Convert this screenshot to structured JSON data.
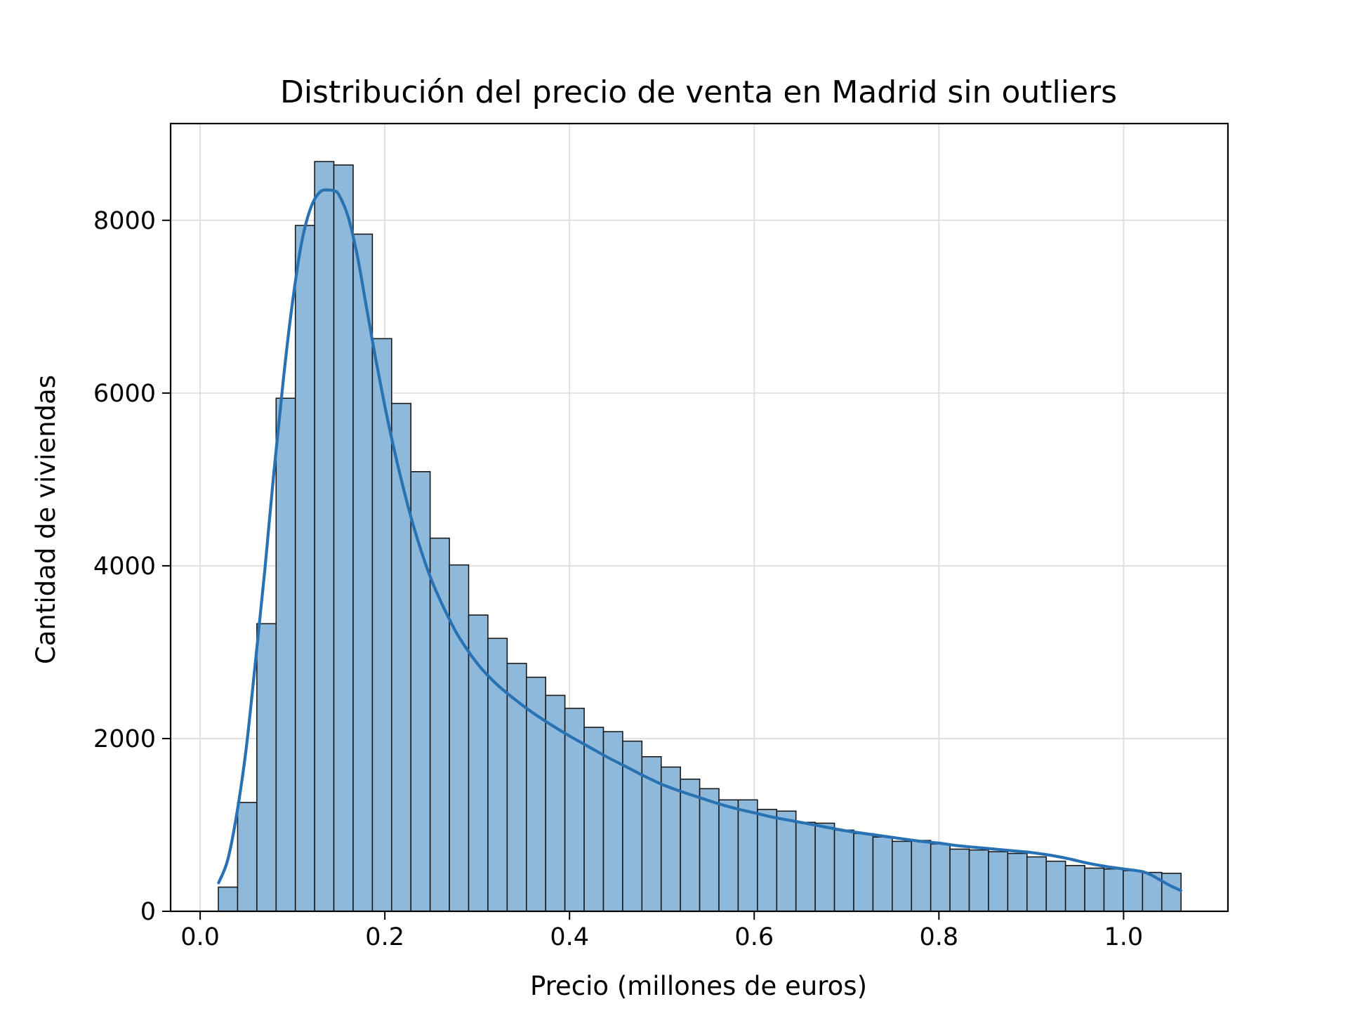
{
  "chart_data": {
    "type": "bar",
    "title": "Distribución del precio de venta en Madrid sin outliers",
    "xlabel": "Precio (millones de euros)",
    "ylabel": "Cantidad de viviendas",
    "xlim": [
      -0.032,
      1.113
    ],
    "ylim": [
      0,
      9120
    ],
    "xticks": [
      0.0,
      0.2,
      0.4,
      0.6,
      0.8,
      1.0
    ],
    "xtick_labels": [
      "0.0",
      "0.2",
      "0.4",
      "0.6",
      "0.8",
      "1.0"
    ],
    "yticks": [
      0,
      2000,
      4000,
      6000,
      8000
    ],
    "ytick_labels": [
      "0",
      "2000",
      "4000",
      "6000",
      "8000"
    ],
    "grid": true,
    "bins": {
      "start": 0.0197,
      "width": 0.02085,
      "counts": [
        280,
        1260,
        3330,
        5940,
        7940,
        8680,
        8640,
        7840,
        6630,
        5880,
        5090,
        4320,
        4010,
        3430,
        3160,
        2870,
        2710,
        2500,
        2350,
        2130,
        2080,
        1970,
        1790,
        1670,
        1530,
        1420,
        1290,
        1290,
        1180,
        1160,
        1030,
        1020,
        940,
        900,
        860,
        810,
        820,
        780,
        720,
        710,
        690,
        670,
        630,
        580,
        530,
        500,
        490,
        470,
        450,
        440
      ]
    },
    "kde": {
      "x": [
        0.02,
        0.03,
        0.04,
        0.05,
        0.06,
        0.07,
        0.08,
        0.09,
        0.1,
        0.11,
        0.12,
        0.13,
        0.14,
        0.145,
        0.15,
        0.16,
        0.17,
        0.18,
        0.19,
        0.2,
        0.21,
        0.22,
        0.23,
        0.24,
        0.25,
        0.26,
        0.27,
        0.28,
        0.3,
        0.32,
        0.34,
        0.36,
        0.38,
        0.4,
        0.42,
        0.44,
        0.46,
        0.48,
        0.5,
        0.52,
        0.54,
        0.56,
        0.58,
        0.6,
        0.62,
        0.64,
        0.66,
        0.68,
        0.7,
        0.72,
        0.74,
        0.76,
        0.78,
        0.8,
        0.82,
        0.84,
        0.86,
        0.88,
        0.9,
        0.92,
        0.94,
        0.96,
        0.98,
        1.0,
        1.02,
        1.03,
        1.04,
        1.05,
        1.062
      ],
      "y": [
        330,
        600,
        1150,
        1900,
        2900,
        3950,
        5100,
        6150,
        7050,
        7750,
        8150,
        8330,
        8350,
        8340,
        8300,
        8050,
        7600,
        7000,
        6400,
        5850,
        5350,
        4900,
        4500,
        4150,
        3850,
        3600,
        3380,
        3180,
        2870,
        2640,
        2460,
        2300,
        2160,
        2030,
        1910,
        1790,
        1680,
        1570,
        1470,
        1390,
        1320,
        1250,
        1190,
        1140,
        1090,
        1050,
        1010,
        970,
        930,
        900,
        870,
        840,
        810,
        790,
        760,
        740,
        720,
        700,
        680,
        650,
        610,
        560,
        520,
        490,
        460,
        420,
        360,
        300,
        240
      ],
      "color": "#2872b4"
    },
    "bar_fill": "#8fb9da",
    "bar_edge": "#1a1a1a"
  }
}
